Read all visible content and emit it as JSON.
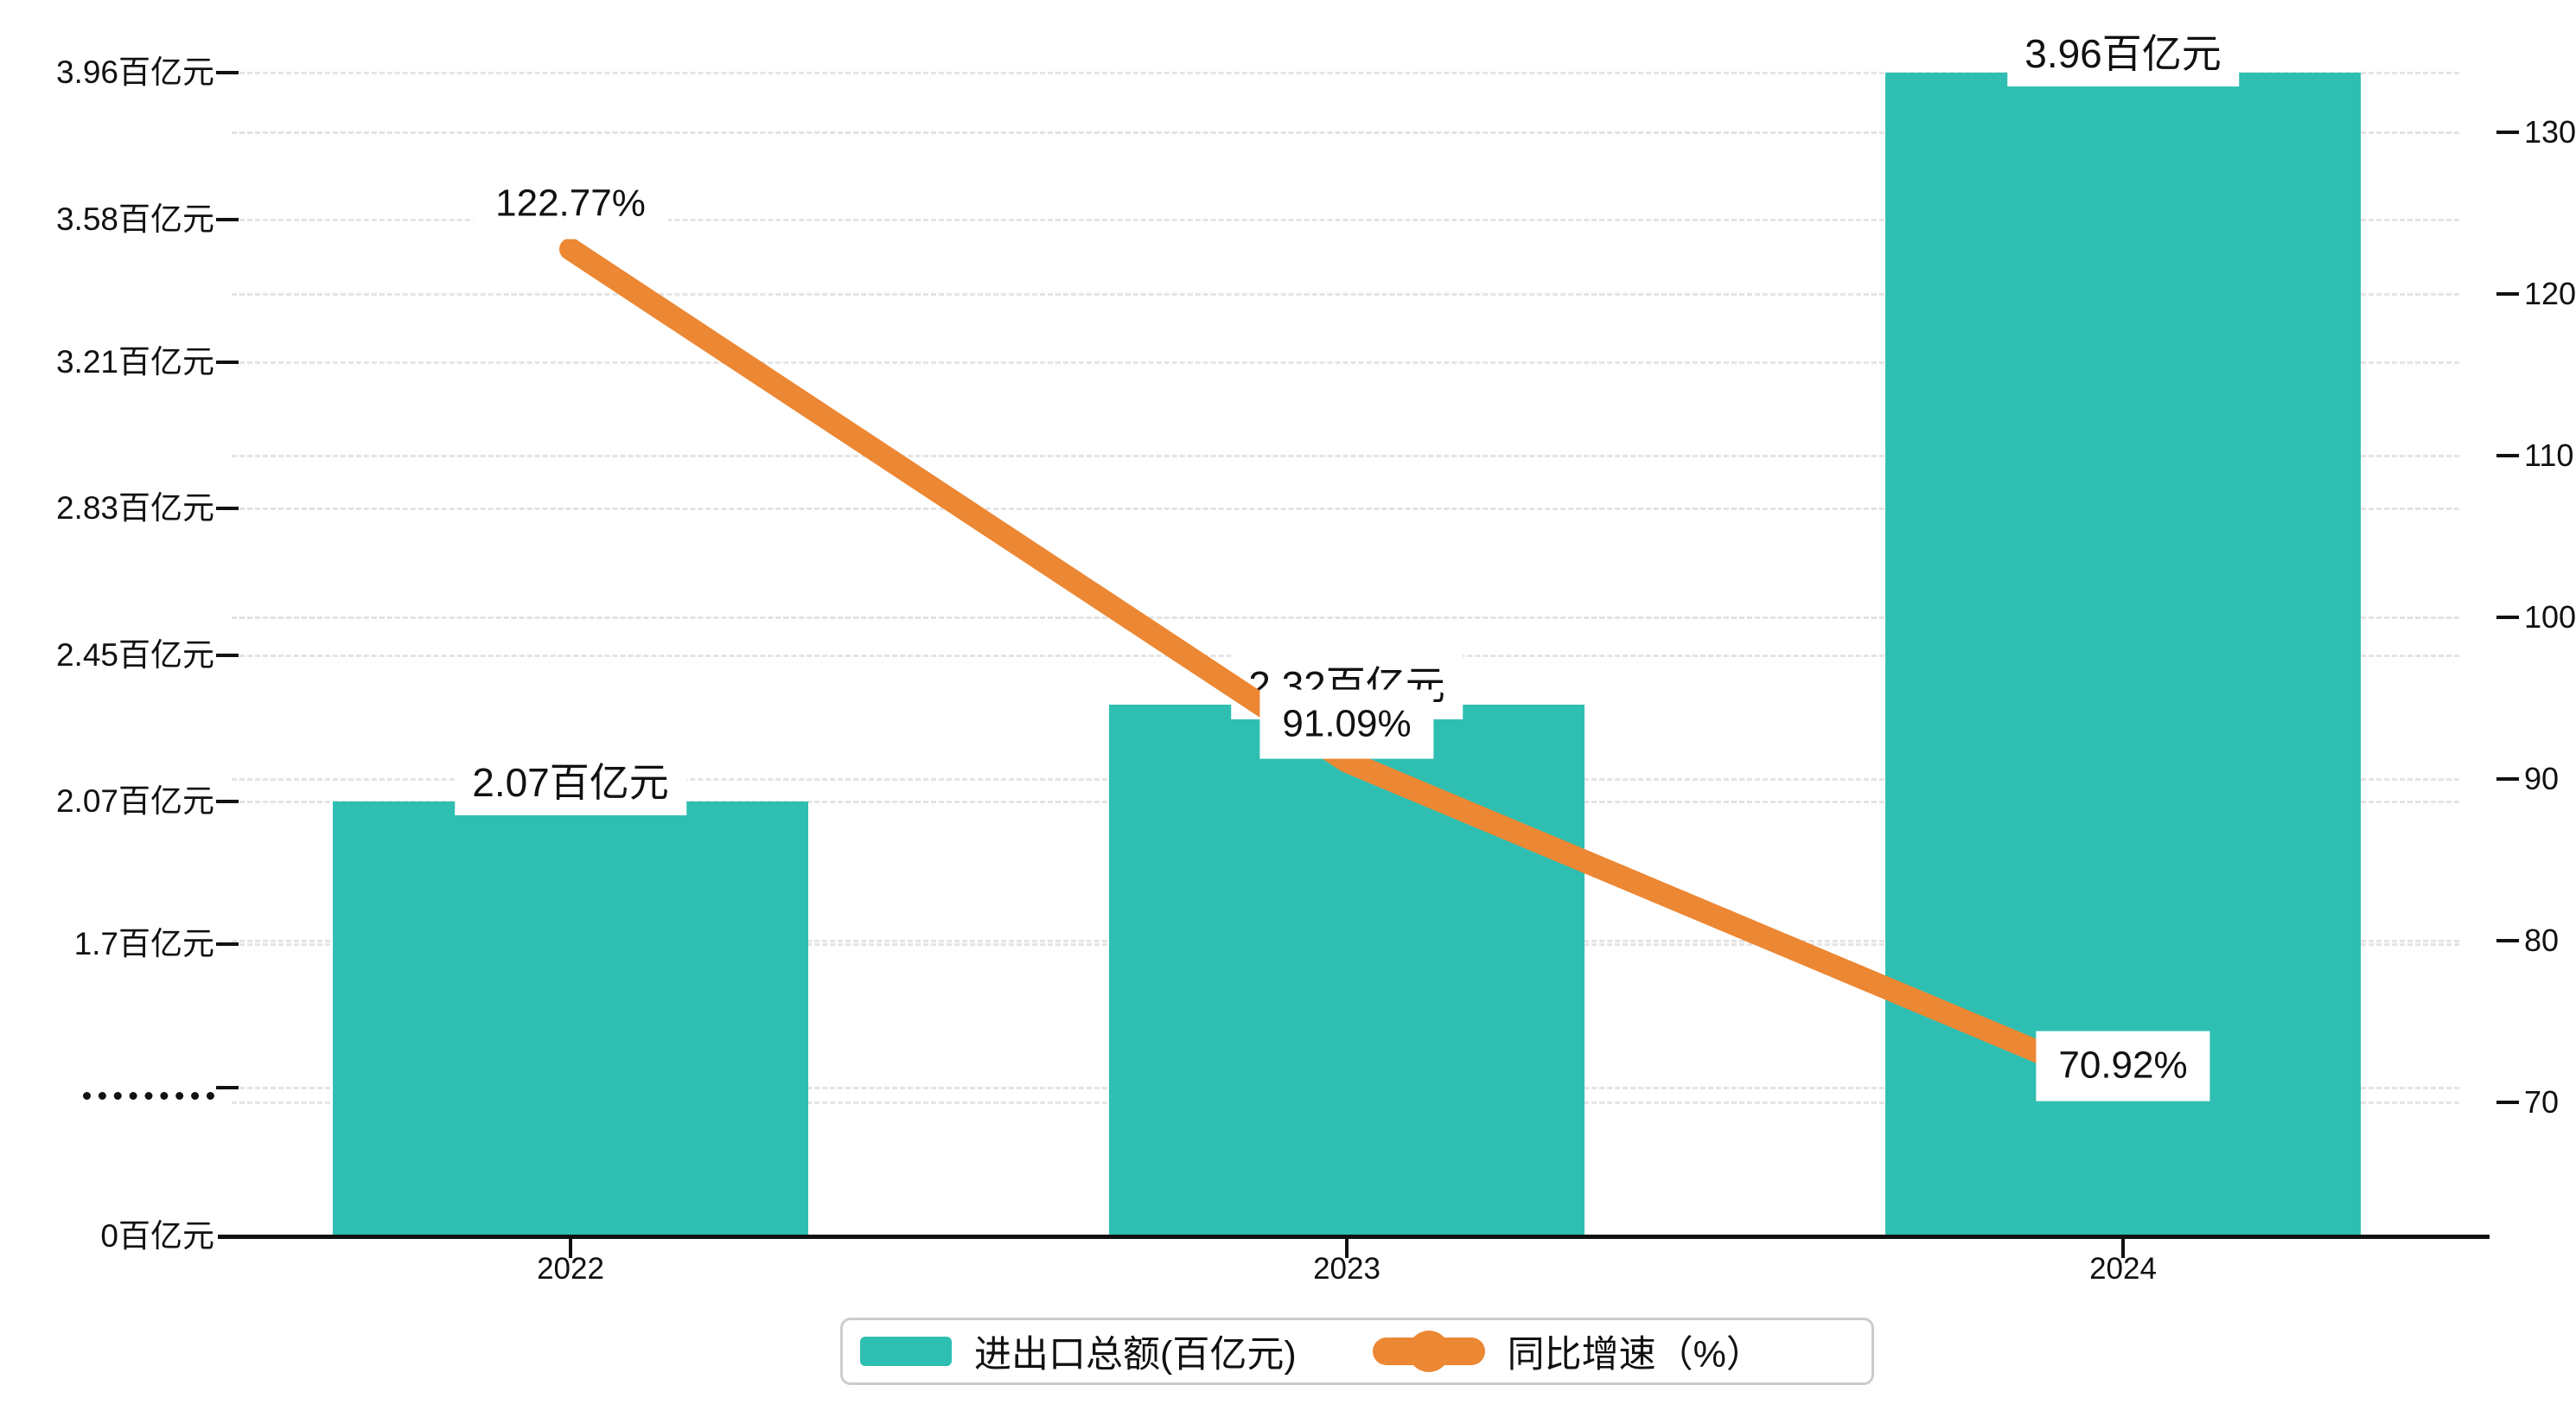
{
  "chart_data": {
    "type": "bar+line",
    "categories": [
      "2022",
      "2023",
      "2024"
    ],
    "series": [
      {
        "name": "进出口总额(百亿元)",
        "type": "bar",
        "axis": "left",
        "values": [
          2.07,
          2.32,
          3.96
        ],
        "labels": [
          "2.07百亿元",
          "2.32百亿元",
          "3.96百亿元"
        ],
        "color": "#2FBFB2"
      },
      {
        "name": "同比增速（%）",
        "type": "line",
        "axis": "right",
        "values": [
          122.77,
          91.09,
          70.92
        ],
        "labels": [
          "122.77%",
          "91.09%",
          "70.92%"
        ],
        "color": "#EC8733"
      }
    ],
    "left_axis": {
      "unit": "百亿元",
      "tick_labels": [
        "3.96百亿元",
        "3.58百亿元",
        "3.21百亿元",
        "2.83百亿元",
        "2.45百亿元",
        "2.07百亿元",
        "1.7百亿元",
        "·········",
        "0百亿元"
      ],
      "tick_values": [
        3.96,
        3.58,
        3.21,
        2.83,
        2.45,
        2.07,
        1.7,
        null,
        0
      ],
      "axis_break": "between 0 and 1.7"
    },
    "right_axis": {
      "tick_labels": [
        "130",
        "120",
        "110",
        "100",
        "90",
        "80",
        "70"
      ],
      "tick_values": [
        130,
        120,
        110,
        100,
        90,
        80,
        70
      ],
      "range": [
        70,
        130
      ]
    },
    "x_axis": {
      "labels": [
        "2022",
        "2023",
        "2024"
      ]
    },
    "grid": "dashed horizontal gridlines for both axes",
    "legend_position": "bottom-center"
  },
  "legend": {
    "items": [
      {
        "label": "进出口总额(百亿元)",
        "marker": "bar-swatch",
        "color": "#2FBFB2"
      },
      {
        "label": "同比增速（%）",
        "marker": "line-dot",
        "color": "#EC8733"
      }
    ]
  },
  "colors": {
    "bar": "#2FBFB2",
    "line": "#EC8733",
    "grid": "#e4e4e4",
    "axis": "#111111",
    "text": "#111111",
    "label_background": "#ffffff"
  }
}
